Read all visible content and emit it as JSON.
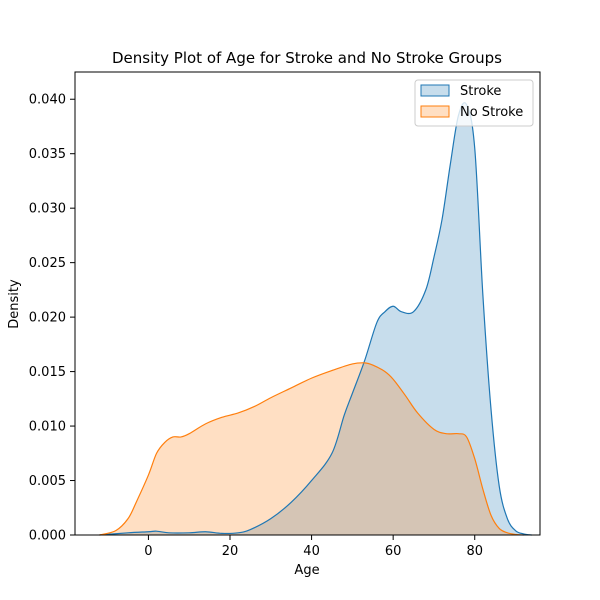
{
  "chart_data": {
    "type": "area",
    "title": "Density Plot of Age for Stroke and No Stroke Groups",
    "xlabel": "Age",
    "ylabel": "Density",
    "xlim": [
      -18,
      96
    ],
    "ylim": [
      0,
      0.0425
    ],
    "xticks": [
      0,
      20,
      40,
      60,
      80
    ],
    "yticks": [
      0.0,
      0.005,
      0.01,
      0.015,
      0.02,
      0.025,
      0.03,
      0.035,
      0.04
    ],
    "grid": false,
    "legend_position": "top-right",
    "series": [
      {
        "name": "Stroke",
        "color": "#1f77b4",
        "fill": "#1f77b4",
        "x": [
          -12,
          -5,
          0,
          2,
          5,
          10,
          14,
          18,
          22,
          25,
          30,
          35,
          40,
          45,
          48,
          50,
          53,
          56,
          58,
          60,
          62,
          65,
          68,
          70,
          72,
          74,
          76,
          78,
          80,
          82,
          84,
          86,
          88,
          90,
          92,
          94
        ],
        "y": [
          0.0,
          0.0002,
          0.0003,
          0.00035,
          0.0002,
          0.0002,
          0.0003,
          0.00015,
          0.0002,
          0.0005,
          0.0015,
          0.003,
          0.005,
          0.0075,
          0.011,
          0.013,
          0.016,
          0.0195,
          0.0205,
          0.021,
          0.0205,
          0.0205,
          0.0225,
          0.0255,
          0.029,
          0.034,
          0.0385,
          0.0395,
          0.0355,
          0.022,
          0.0115,
          0.0045,
          0.0015,
          0.0004,
          0.0001,
          0.0
        ]
      },
      {
        "name": "No Stroke",
        "color": "#ff7f0e",
        "fill": "#ff7f0e",
        "x": [
          -12,
          -8,
          -5,
          -3,
          0,
          2,
          4,
          6,
          8,
          10,
          14,
          18,
          22,
          26,
          30,
          35,
          40,
          45,
          50,
          53,
          55,
          58,
          60,
          63,
          66,
          70,
          73,
          76,
          78,
          80,
          82,
          84,
          86,
          88,
          90,
          92
        ],
        "y": [
          0.0,
          0.0004,
          0.0015,
          0.003,
          0.0055,
          0.0075,
          0.0085,
          0.009,
          0.009,
          0.0093,
          0.0102,
          0.0108,
          0.0112,
          0.0118,
          0.0126,
          0.0135,
          0.0144,
          0.0151,
          0.0157,
          0.0158,
          0.0156,
          0.015,
          0.0143,
          0.0128,
          0.0112,
          0.0097,
          0.0093,
          0.0093,
          0.009,
          0.007,
          0.0042,
          0.0018,
          0.0006,
          0.0002,
          5e-05,
          0.0
        ]
      }
    ]
  }
}
